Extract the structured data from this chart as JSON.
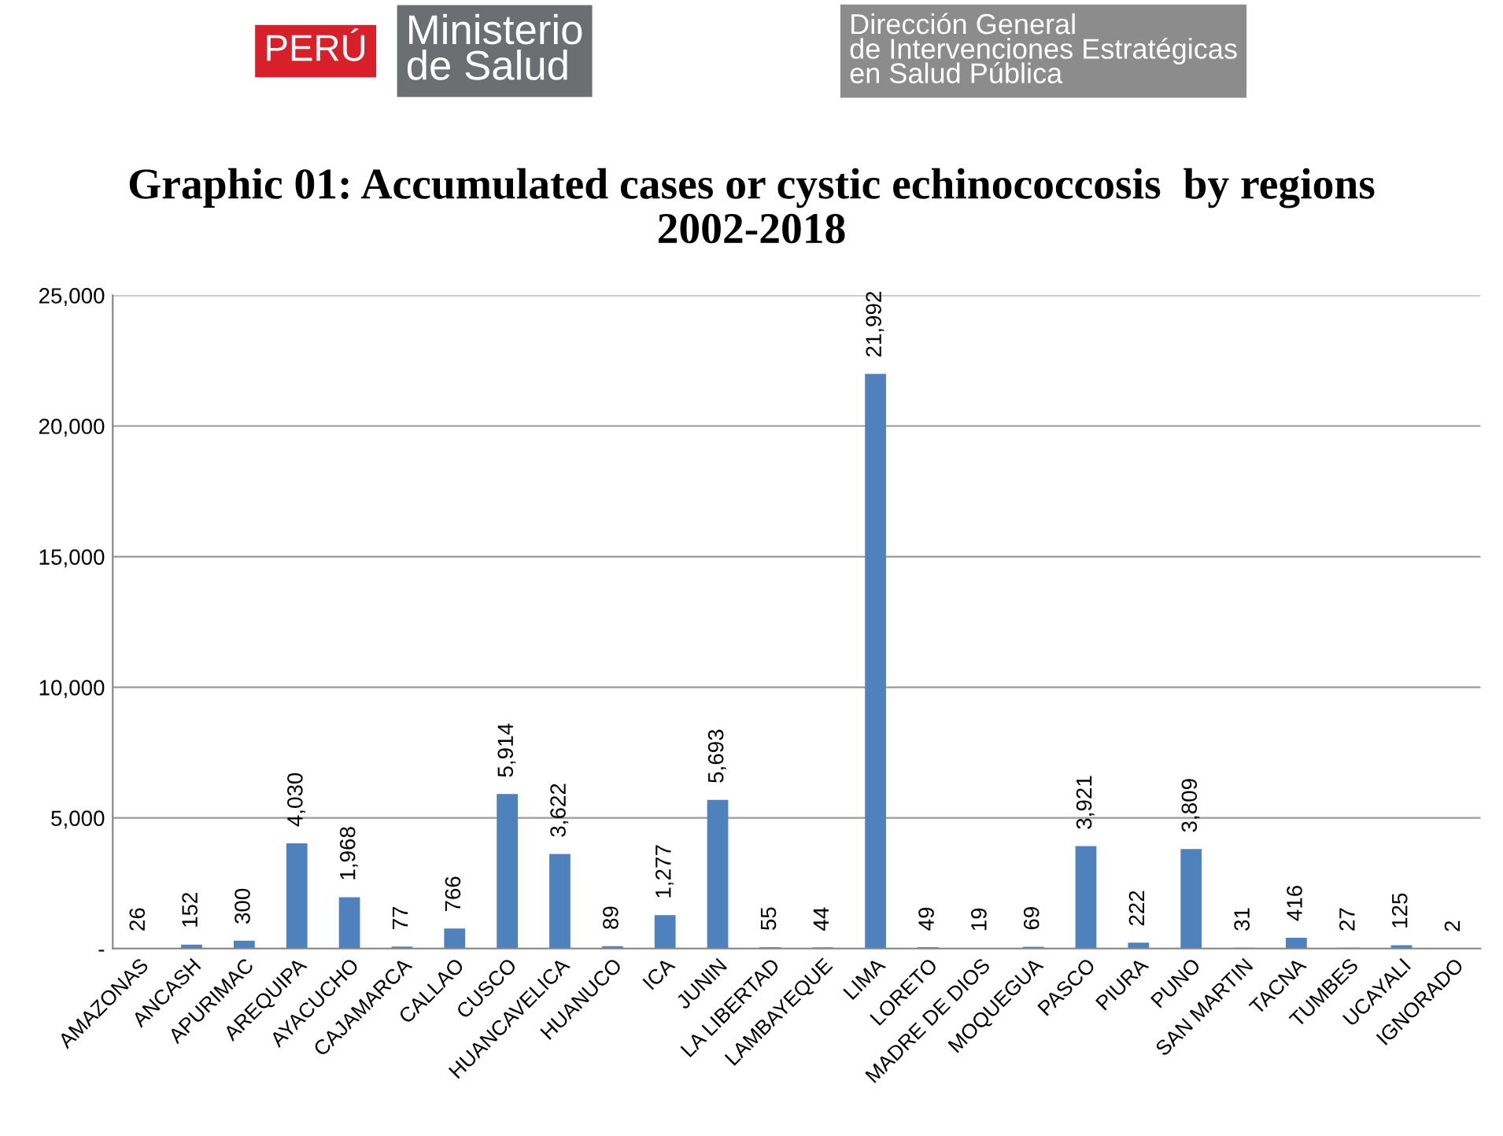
{
  "chart_data": {
    "type": "bar",
    "title": "Graphic 01: Accumulated cases or cystic echinococcosis  by regions\n2002-2018",
    "annotations": [
      "PERÚ",
      "Ministerio\nde Salud",
      "Dirección General\nde Intervenciones Estratégicas\nen Salud Pública"
    ],
    "categories": [
      "AMAZONAS",
      "ANCASH",
      "APURIMAC",
      "AREQUIPA",
      "AYACUCHO",
      "CAJAMARCA",
      "CALLAO",
      "CUSCO",
      "HUANCAVELICA",
      "HUANUCO",
      "ICA",
      "JUNIN",
      "LA LIBERTAD",
      "LAMBAYEQUE",
      "LIMA",
      "LORETO",
      "MADRE DE DIOS",
      "MOQUEGUA",
      "PASCO",
      "PIURA",
      "PUNO",
      "SAN MARTIN",
      "TACNA",
      "TUMBES",
      "UCAYALI",
      "IGNORADO"
    ],
    "values": [
      26,
      152,
      300,
      4030,
      1968,
      77,
      766,
      5914,
      3622,
      89,
      1277,
      5693,
      55,
      44,
      21992,
      49,
      19,
      69,
      3921,
      222,
      3809,
      31,
      416,
      27,
      125,
      2
    ],
    "color": "#4f81bd",
    "ylim": [
      0,
      25000
    ],
    "yticks": [
      {
        "value": 0,
        "label": "-"
      },
      {
        "value": 5000,
        "label": "5,000"
      },
      {
        "value": 10000,
        "label": "10,000"
      },
      {
        "value": 15000,
        "label": "15,000"
      },
      {
        "value": 20000,
        "label": "20,000"
      },
      {
        "value": 25000,
        "label": "25,000"
      }
    ],
    "value_labels": [
      "26",
      "152",
      "300",
      "4,030",
      "1,968",
      "77",
      "766",
      "5,914",
      "3,622",
      "89",
      "1,277",
      "5,693",
      "55",
      "44",
      "21,992",
      "49",
      "19",
      "69",
      "3,921",
      "222",
      "3,809",
      "31",
      "416",
      "27",
      "125",
      "2"
    ],
    "grid": "y",
    "legend": false
  }
}
